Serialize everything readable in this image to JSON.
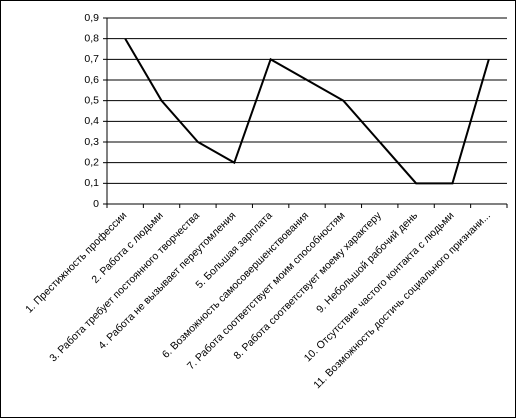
{
  "chart_data": {
    "type": "line",
    "categories": [
      "1. Престижность профессии",
      "2. Работа с людьми",
      "3. Работа требует постоянного творчества",
      "4. Работа не вызывает переутомления",
      "5. Большая зарплата",
      "6. Возможность самосовершенствования",
      "7. Работа соответствует моим способностям",
      "8. Работа соответствует моему характеру",
      "9. Небольшой рабочий день",
      "10. Отсутствие частого контакта с людьми",
      "11. Возможность достичь социального признани..."
    ],
    "values": [
      0.8,
      0.5,
      0.3,
      0.2,
      0.7,
      0.6,
      0.5,
      0.3,
      0.1,
      0.1,
      0.7
    ],
    "color": "#000000",
    "ylim": [
      0,
      0.9
    ],
    "yticks": [
      0,
      {
        "value": 0.1,
        "label": "0,1"
      },
      {
        "value": 0.2,
        "label": "0,2"
      },
      {
        "value": 0.3,
        "label": "0,3"
      },
      {
        "value": 0.4,
        "label": "0,4"
      },
      {
        "value": 0.5,
        "label": "0,5"
      },
      {
        "value": 0.6,
        "label": "0,6"
      },
      {
        "value": 0.7,
        "label": "0,7"
      },
      {
        "value": 0.8,
        "label": "0,8"
      },
      {
        "value": 0.9,
        "label": "0,9"
      }
    ],
    "grid": true
  }
}
